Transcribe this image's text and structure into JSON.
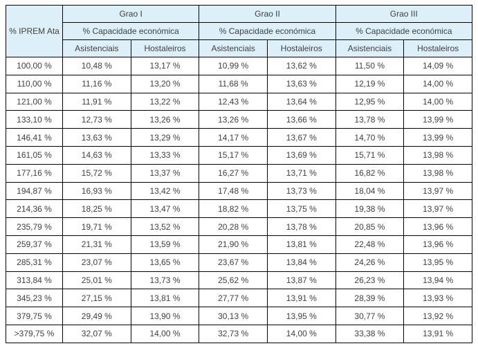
{
  "table": {
    "corner_header": "% IPREM Ata",
    "groups": [
      {
        "name": "Grao I",
        "subheader": "% Capacidade económica",
        "columns": [
          "Asistenciais",
          "Hostaleiros"
        ]
      },
      {
        "name": "Grao II",
        "subheader": "% Capacidade económica",
        "columns": [
          "Asistenciais",
          "Hostaleiros"
        ]
      },
      {
        "name": "Grao III",
        "subheader": "% Capacidade económica",
        "columns": [
          "Asistenciais",
          "Hostaleiros"
        ]
      }
    ],
    "rows": [
      [
        "100,00 %",
        "10,48 %",
        "13,17 %",
        "10,99 %",
        "13,62 %",
        "11,50 %",
        "14,09 %"
      ],
      [
        "110,00 %",
        "11,16 %",
        "13,20 %",
        "11,68 %",
        "13,63 %",
        "12,19 %",
        "14,00 %"
      ],
      [
        "121,00 %",
        "11,91 %",
        "13,22 %",
        "12,43 %",
        "13,64 %",
        "12,95 %",
        "14,00 %"
      ],
      [
        "133,10 %",
        "12,73 %",
        "13,26 %",
        "13,26 %",
        "13,66 %",
        "13,78 %",
        "13,99 %"
      ],
      [
        "146,41 %",
        "13,63 %",
        "13,29 %",
        "14,17 %",
        "13,67 %",
        "14,70 %",
        "13,99 %"
      ],
      [
        "161,05 %",
        "14,63 %",
        "13,33 %",
        "15,17 %",
        "13,69 %",
        "15,71 %",
        "13,98 %"
      ],
      [
        "177,16 %",
        "15,72 %",
        "13,37 %",
        "16,27 %",
        "13,71 %",
        "16,82 %",
        "13,98 %"
      ],
      [
        "194,87 %",
        "16,93 %",
        "13,42 %",
        "17,48 %",
        "13,73 %",
        "18,04 %",
        "13,97 %"
      ],
      [
        "214,36 %",
        "18,25 %",
        "13,47 %",
        "18,82 %",
        "13,75 %",
        "19,38 %",
        "13,97 %"
      ],
      [
        "235,79 %",
        "19,71 %",
        "13,52 %",
        "20,28 %",
        "13,78 %",
        "20,85 %",
        "13,96 %"
      ],
      [
        "259,37 %",
        "21,31 %",
        "13,59 %",
        "21,90 %",
        "13,81 %",
        "22,48 %",
        "13,96 %"
      ],
      [
        "285,31 %",
        "23,07 %",
        "13,65 %",
        "23,67 %",
        "13,84 %",
        "24,26 %",
        "13,95 %"
      ],
      [
        "313,84 %",
        "25,01 %",
        "13,73 %",
        "25,62 %",
        "13,87 %",
        "26,23 %",
        "13,94 %"
      ],
      [
        "345,23 %",
        "27,15 %",
        "13,81 %",
        "27,77 %",
        "13,91 %",
        "28,39 %",
        "13,93 %"
      ],
      [
        "379,75 %",
        "29,49 %",
        "13,90 %",
        "30,13 %",
        "13,95 %",
        "30,77 %",
        "13,92 %"
      ],
      [
        ">379,75 %",
        "32,07 %",
        "14,00 %",
        "32,73 %",
        "14,00 %",
        "33,38 %",
        "13,91 %"
      ]
    ]
  },
  "colors": {
    "header_bg": "#ddeff8",
    "border": "#000000",
    "text": "#3f3f3f"
  }
}
